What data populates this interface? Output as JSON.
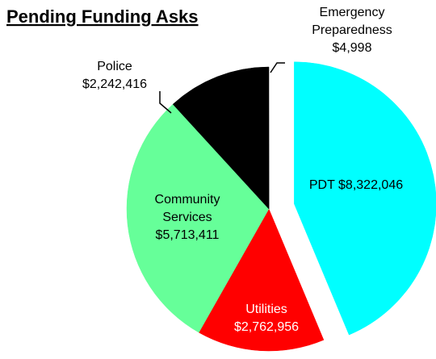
{
  "chart_data": {
    "type": "pie",
    "title": "Pending Funding Asks",
    "slices": [
      {
        "name": "PDT",
        "value": 8322046,
        "value_label": "$8,322,046",
        "color": "#00ffff",
        "exploded": true,
        "label_lines": [
          "PDT $8,322,046"
        ],
        "label_color": "#000000"
      },
      {
        "name": "Utilities",
        "value": 2762956,
        "value_label": "$2,762,956",
        "color": "#ff0000",
        "exploded": false,
        "label_lines": [
          "Utilities",
          "$2,762,956"
        ],
        "label_color": "#ffffff"
      },
      {
        "name": "Community Services",
        "value": 5713411,
        "value_label": "$5,713,411",
        "color": "#66ff99",
        "exploded": false,
        "label_lines": [
          "Community",
          "Services",
          "$5,713,411"
        ],
        "label_color": "#000000"
      },
      {
        "name": "Police",
        "value": 2242416,
        "value_label": "$2,242,416",
        "color": "#000000",
        "exploded": false,
        "label_lines": [
          "Police",
          "$2,242,416"
        ],
        "label_color": "#000000"
      },
      {
        "name": "Emergency Preparedness",
        "value": 4998,
        "value_label": "$4,998",
        "color": "#000000",
        "exploded": false,
        "label_lines": [
          "Emergency",
          "Preparedness",
          "$4,998"
        ],
        "label_color": "#000000"
      }
    ]
  }
}
